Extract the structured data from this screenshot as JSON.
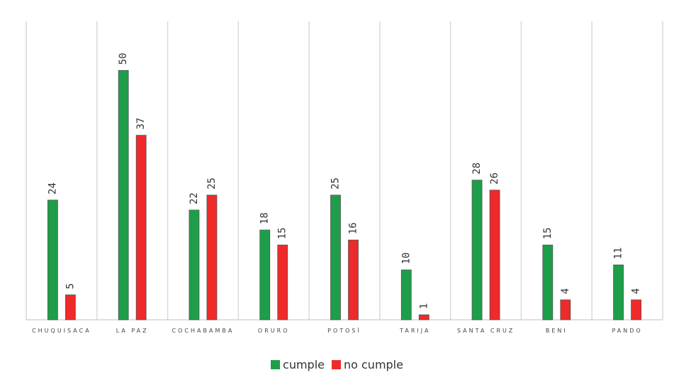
{
  "chart_data": {
    "type": "bar",
    "title": "",
    "xlabel": "",
    "ylabel": "",
    "ylim": [
      0,
      60
    ],
    "grid": "vertical separators between categories",
    "legend_position": "bottom",
    "categories": [
      "CHUQUISACA",
      "LA PAZ",
      "COCHABAMBA",
      "ORURO",
      "POTOSÌ",
      "TARIJA",
      "SANTA CRUZ",
      "BENI",
      "PANDO"
    ],
    "series": [
      {
        "name": "cumple",
        "color": "#1e9e49",
        "values": [
          24,
          50,
          22,
          18,
          25,
          10,
          28,
          15,
          11
        ]
      },
      {
        "name": "no cumple",
        "color": "#ee2a2a",
        "values": [
          5,
          37,
          25,
          15,
          16,
          1,
          26,
          4,
          4
        ]
      }
    ]
  },
  "colors": {
    "gridline": "#d9d9d9",
    "axis": "#bfbfbf",
    "bar_border": "#555555"
  }
}
